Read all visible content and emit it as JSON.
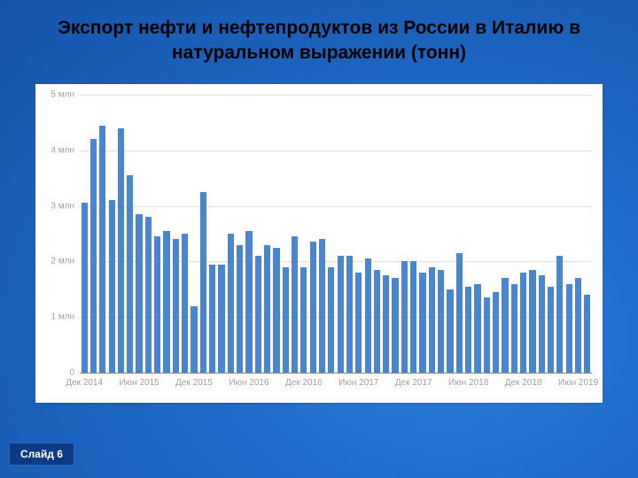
{
  "slide": {
    "title": "Экспорт нефти и нефтепродуктов из России в Италию в натуральном выражении (тонн)",
    "title_fontsize": 21,
    "badge": "Слайд 6",
    "badge_fontsize": 12,
    "background_gradient": [
      "#2a7fdc",
      "#1454a8"
    ]
  },
  "chart": {
    "type": "bar",
    "background_color": "#ffffff",
    "grid_color": "#e0e0e0",
    "axis_color": "#888888",
    "tick_fontsize": 10,
    "tick_color": "#9e9e9e",
    "bar_color": "#4a86d0",
    "bar_gap_ratio": 0.3,
    "ylim": [
      0,
      5
    ],
    "ytick_step": 1,
    "yticks": [
      {
        "v": 0,
        "label": "0"
      },
      {
        "v": 1,
        "label": "1 млн"
      },
      {
        "v": 2,
        "label": "2 млн"
      },
      {
        "v": 3,
        "label": "3 млн"
      },
      {
        "v": 4,
        "label": "4 млн"
      },
      {
        "v": 5,
        "label": "5 млн"
      }
    ],
    "xticks": [
      {
        "i": 0,
        "label": "Дек 2014"
      },
      {
        "i": 6,
        "label": "Июн 2015"
      },
      {
        "i": 12,
        "label": "Дек 2015"
      },
      {
        "i": 18,
        "label": "Июн 2016"
      },
      {
        "i": 24,
        "label": "Дек 2016"
      },
      {
        "i": 30,
        "label": "Июн 2017"
      },
      {
        "i": 36,
        "label": "Дек 2017"
      },
      {
        "i": 42,
        "label": "Июн 2018"
      },
      {
        "i": 48,
        "label": "Дек 2018"
      },
      {
        "i": 54,
        "label": "Июн 2019"
      }
    ],
    "values": [
      3.05,
      4.2,
      4.45,
      3.1,
      4.4,
      3.55,
      2.85,
      2.8,
      2.45,
      2.55,
      2.4,
      2.5,
      1.2,
      3.25,
      1.95,
      1.95,
      2.5,
      2.3,
      2.55,
      2.1,
      2.3,
      2.25,
      1.9,
      2.45,
      1.9,
      2.35,
      2.4,
      1.9,
      2.1,
      2.1,
      1.8,
      2.05,
      1.85,
      1.75,
      1.7,
      2.0,
      2.0,
      1.8,
      1.9,
      1.85,
      1.5,
      2.15,
      1.55,
      1.6,
      1.35,
      1.45,
      1.7,
      1.6,
      1.8,
      1.85,
      1.75,
      1.55,
      2.1,
      1.6,
      1.7,
      1.4
    ]
  }
}
